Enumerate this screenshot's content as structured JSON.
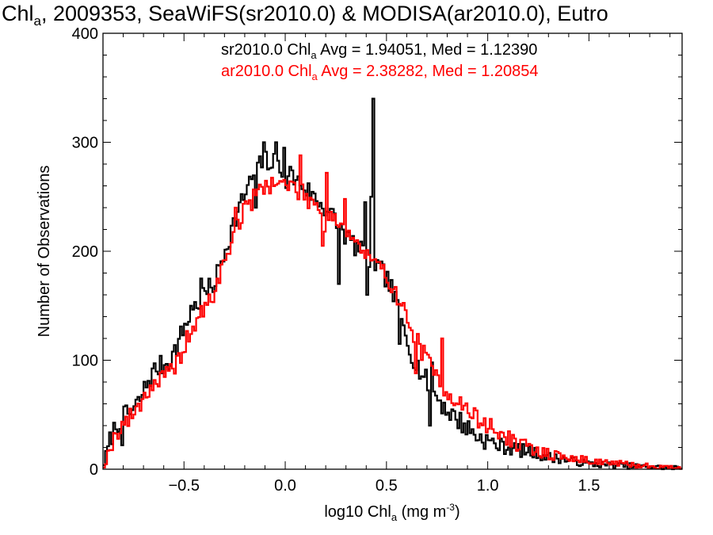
{
  "chart_data": {
    "type": "histogram",
    "title": {
      "prefix": "Chl",
      "prefix_sub": "a",
      "rest": ", 2009353, SeaWiFS(sr2010.0) & MODISA(ar2010.0), Eutro"
    },
    "xlabel": {
      "pre": "log10 Chl",
      "sub": "a",
      "mid": " (mg m",
      "sup": "-3",
      "post": ")"
    },
    "ylabel": "Number of Observations",
    "xlim": [
      -0.9,
      1.96
    ],
    "ylim": [
      0,
      400
    ],
    "xticks": [
      {
        "value": -0.5,
        "label": "−0.5"
      },
      {
        "value": 0.0,
        "label": "0.0"
      },
      {
        "value": 0.5,
        "label": "0.5"
      },
      {
        "value": 1.0,
        "label": "1.0"
      },
      {
        "value": 1.5,
        "label": "1.5"
      }
    ],
    "yticks": [
      {
        "value": 0,
        "label": "0"
      },
      {
        "value": 100,
        "label": "100"
      },
      {
        "value": 200,
        "label": "200"
      },
      {
        "value": 300,
        "label": "300"
      },
      {
        "value": 400,
        "label": "400"
      }
    ],
    "x_minor_step": 0.1,
    "y_minor_step": 20,
    "bin_width": 0.01,
    "series": [
      {
        "name": "sr2010.0",
        "color": "#000000",
        "legend": {
          "pre": "sr2010.0 Chl",
          "sub": "a",
          "post": " Avg = 1.94051, Med = 1.12390"
        },
        "profile": [
          [
            -0.9,
            2
          ],
          [
            -0.86,
            30
          ],
          [
            -0.82,
            45
          ],
          [
            -0.76,
            52
          ],
          [
            -0.72,
            62
          ],
          [
            -0.68,
            80
          ],
          [
            -0.64,
            92
          ],
          [
            -0.58,
            98
          ],
          [
            -0.54,
            110
          ],
          [
            -0.5,
            130
          ],
          [
            -0.45,
            148
          ],
          [
            -0.4,
            160
          ],
          [
            -0.35,
            170
          ],
          [
            -0.3,
            200
          ],
          [
            -0.25,
            228
          ],
          [
            -0.2,
            252
          ],
          [
            -0.15,
            272
          ],
          [
            -0.1,
            284
          ],
          [
            -0.05,
            280
          ],
          [
            0.0,
            276
          ],
          [
            0.05,
            266
          ],
          [
            0.1,
            258
          ],
          [
            0.15,
            248
          ],
          [
            0.2,
            240
          ],
          [
            0.25,
            228
          ],
          [
            0.3,
            214
          ],
          [
            0.35,
            204
          ],
          [
            0.4,
            194
          ],
          [
            0.45,
            186
          ],
          [
            0.5,
            176
          ],
          [
            0.55,
            152
          ],
          [
            0.6,
            118
          ],
          [
            0.65,
            96
          ],
          [
            0.7,
            80
          ],
          [
            0.75,
            66
          ],
          [
            0.8,
            54
          ],
          [
            0.85,
            46
          ],
          [
            0.9,
            38
          ],
          [
            0.95,
            30
          ],
          [
            1.0,
            26
          ],
          [
            1.05,
            22
          ],
          [
            1.1,
            20
          ],
          [
            1.15,
            18
          ],
          [
            1.2,
            16
          ],
          [
            1.25,
            14
          ],
          [
            1.3,
            11
          ],
          [
            1.35,
            10
          ],
          [
            1.4,
            8
          ],
          [
            1.5,
            5
          ],
          [
            1.6,
            4
          ],
          [
            1.7,
            3
          ],
          [
            1.8,
            2
          ],
          [
            1.96,
            1
          ]
        ],
        "spikes": [
          [
            -0.11,
            300
          ],
          [
            -0.09,
            275
          ],
          [
            -0.01,
            295
          ],
          [
            0.0,
            258
          ],
          [
            -0.15,
            240
          ],
          [
            -0.05,
            300
          ],
          [
            0.42,
            250
          ],
          [
            0.43,
            340
          ],
          [
            0.39,
            245
          ],
          [
            0.4,
            160
          ],
          [
            -0.47,
            150
          ],
          [
            -0.42,
            175
          ],
          [
            0.58,
            132
          ],
          [
            0.56,
            115
          ],
          [
            0.72,
            98
          ],
          [
            0.71,
            40
          ],
          [
            -0.81,
            22
          ],
          [
            0.26,
            170
          ]
        ],
        "noise": 10,
        "seed": 7
      },
      {
        "name": "ar2010.0",
        "color": "#ff0000",
        "legend": {
          "pre": "ar2010.0 Chl",
          "sub": "a",
          "post": " Avg = 2.38282, Med = 1.20854"
        },
        "profile": [
          [
            -0.9,
            0
          ],
          [
            -0.86,
            22
          ],
          [
            -0.82,
            38
          ],
          [
            -0.76,
            48
          ],
          [
            -0.72,
            60
          ],
          [
            -0.68,
            72
          ],
          [
            -0.64,
            80
          ],
          [
            -0.58,
            86
          ],
          [
            -0.54,
            95
          ],
          [
            -0.5,
            112
          ],
          [
            -0.45,
            132
          ],
          [
            -0.4,
            146
          ],
          [
            -0.35,
            162
          ],
          [
            -0.3,
            190
          ],
          [
            -0.25,
            218
          ],
          [
            -0.2,
            238
          ],
          [
            -0.15,
            250
          ],
          [
            -0.1,
            262
          ],
          [
            -0.05,
            262
          ],
          [
            0.0,
            262
          ],
          [
            0.05,
            258
          ],
          [
            0.1,
            250
          ],
          [
            0.15,
            244
          ],
          [
            0.2,
            238
          ],
          [
            0.25,
            230
          ],
          [
            0.3,
            220
          ],
          [
            0.35,
            208
          ],
          [
            0.4,
            196
          ],
          [
            0.45,
            186
          ],
          [
            0.5,
            178
          ],
          [
            0.55,
            162
          ],
          [
            0.6,
            138
          ],
          [
            0.65,
            118
          ],
          [
            0.7,
            100
          ],
          [
            0.75,
            84
          ],
          [
            0.8,
            72
          ],
          [
            0.85,
            62
          ],
          [
            0.9,
            54
          ],
          [
            0.95,
            46
          ],
          [
            1.0,
            40
          ],
          [
            1.05,
            34
          ],
          [
            1.1,
            28
          ],
          [
            1.15,
            23
          ],
          [
            1.2,
            20
          ],
          [
            1.25,
            16
          ],
          [
            1.3,
            14
          ],
          [
            1.35,
            12
          ],
          [
            1.4,
            10
          ],
          [
            1.5,
            8
          ],
          [
            1.6,
            6
          ],
          [
            1.7,
            4
          ],
          [
            1.8,
            3
          ],
          [
            1.96,
            1
          ]
        ],
        "spikes": [
          [
            0.07,
            288
          ],
          [
            0.2,
            272
          ],
          [
            0.19,
            218
          ],
          [
            0.18,
            205
          ],
          [
            0.29,
            248
          ],
          [
            -0.25,
            240
          ],
          [
            0.77,
            120
          ],
          [
            0.66,
            115
          ],
          [
            0.64,
            88
          ]
        ],
        "noise": 9,
        "seed": 19
      }
    ]
  }
}
